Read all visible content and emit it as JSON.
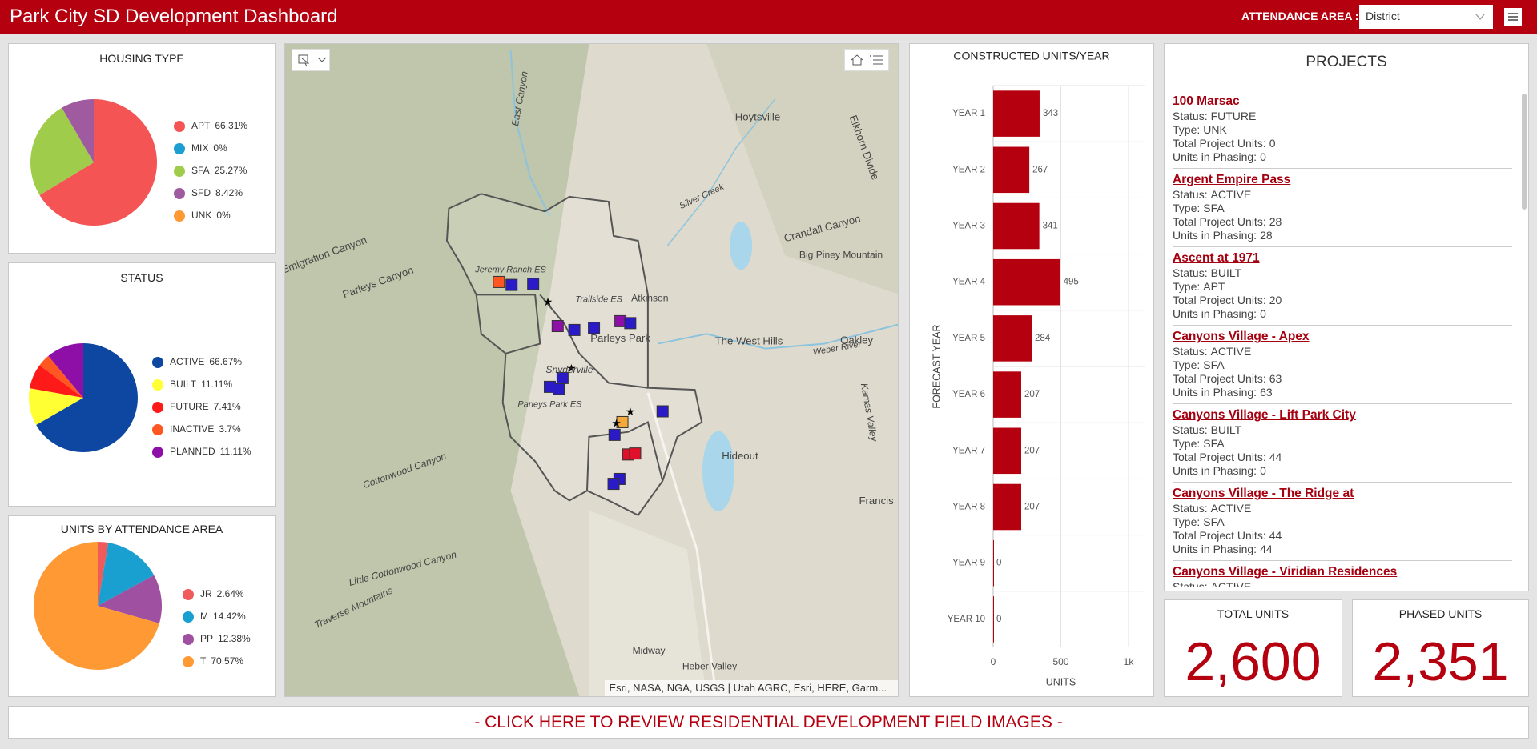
{
  "header": {
    "title": "Park City SD Development Dashboard",
    "filter_label": "ATTENDANCE AREA :",
    "filter_value": "District"
  },
  "chart_data": [
    {
      "type": "pie",
      "title": "HOUSING TYPE",
      "categories": [
        "APT",
        "MIX",
        "SFA",
        "SFD",
        "UNK"
      ],
      "values": [
        66.31,
        0,
        25.27,
        8.42,
        0
      ],
      "value_labels": [
        "66.31%",
        "0%",
        "25.27%",
        "8.42%",
        "0%"
      ],
      "colors": [
        "#f55454",
        "#1a9fd0",
        "#9fcc4a",
        "#a05aa0",
        "#ff9933"
      ]
    },
    {
      "type": "pie",
      "title": "STATUS",
      "categories": [
        "ACTIVE",
        "BUILT",
        "FUTURE",
        "INACTIVE",
        "PLANNED"
      ],
      "values": [
        66.67,
        11.11,
        7.41,
        3.7,
        11.11
      ],
      "value_labels": [
        "66.67%",
        "11.11%",
        "7.41%",
        "3.7%",
        "11.11%"
      ],
      "colors": [
        "#0d47a1",
        "#ffff33",
        "#ff1a1a",
        "#ff5722",
        "#8e0fa8"
      ]
    },
    {
      "type": "pie",
      "title": "UNITS BY ATTENDANCE AREA",
      "categories": [
        "JR",
        "M",
        "PP",
        "T"
      ],
      "values": [
        2.64,
        14.42,
        12.38,
        70.57
      ],
      "value_labels": [
        "2.64%",
        "14.42%",
        "12.38%",
        "70.57%"
      ],
      "colors": [
        "#f05a5a",
        "#1aa0d0",
        "#a050a0",
        "#ff9933"
      ]
    },
    {
      "type": "bar",
      "orientation": "horizontal",
      "title": "CONSTRUCTED UNITS/YEAR",
      "categories": [
        "YEAR 1",
        "YEAR 2",
        "YEAR 3",
        "YEAR 4",
        "YEAR 5",
        "YEAR 6",
        "YEAR 7",
        "YEAR 8",
        "YEAR 9",
        "YEAR 10"
      ],
      "values": [
        343,
        267,
        341,
        495,
        284,
        207,
        207,
        207,
        0,
        0
      ],
      "color": "#b5000f",
      "xlim": [
        0,
        1000
      ],
      "xticks": [
        0,
        500,
        {
          "value": 1000,
          "label": "1k"
        }
      ],
      "x_label": "UNITS",
      "y_label": "FORECAST YEAR",
      "grid": true
    }
  ],
  "map": {
    "labels": [
      "Hoytsville",
      "Atkinson",
      "Parleys Park",
      "The West Hills",
      "Oakley",
      "Hideout",
      "Francis",
      "Midway",
      "Heber Valley",
      "Crandall Canyon",
      "Big Piney Mountain",
      "Parleys Canyon",
      "Emigration Canyon",
      "Cottonwood Canyon",
      "Little Cottonwood Canyon",
      "Traverse Mountains",
      "Snyderville",
      "Jeremy Ranch ES",
      "Trailside ES",
      "Parleys Park ES",
      "East Canyon",
      "Silver Creek",
      "Weber River",
      "Kamas Valley",
      "Elkhorn Divide"
    ],
    "attribution": "Esri, NASA, NGA, USGS | Utah AGRC, Esri, HERE, Garm..."
  },
  "projects": {
    "title": "PROJECTS",
    "field_labels": {
      "status": "Status:",
      "type": "Type:",
      "total_units": "Total Project Units:",
      "units_in_phasing": "Units in Phasing:"
    },
    "items": [
      {
        "name": "100 Marsac",
        "status": "FUTURE",
        "type": "UNK",
        "total_units": 0,
        "units_in_phasing": 0
      },
      {
        "name": "Argent Empire Pass",
        "status": "ACTIVE",
        "type": "SFA",
        "total_units": 28,
        "units_in_phasing": 28
      },
      {
        "name": "Ascent at 1971",
        "status": "BUILT",
        "type": "APT",
        "total_units": 20,
        "units_in_phasing": 0
      },
      {
        "name": "Canyons Village - Apex",
        "status": "ACTIVE",
        "type": "SFA",
        "total_units": 63,
        "units_in_phasing": 63
      },
      {
        "name": "Canyons Village - Lift Park City",
        "status": "BUILT",
        "type": "SFA",
        "total_units": 44,
        "units_in_phasing": 0
      },
      {
        "name": "Canyons Village - The Ridge at",
        "status": "ACTIVE",
        "type": "SFA",
        "total_units": 44,
        "units_in_phasing": 44
      },
      {
        "name": "Canyons Village - Viridian Residences",
        "status": "ACTIVE"
      }
    ]
  },
  "totals": [
    {
      "title": "TOTAL UNITS",
      "value": "2,600"
    },
    {
      "title": "PHASED UNITS",
      "value": "2,351"
    }
  ],
  "banner": "- CLICK HERE TO REVIEW RESIDENTIAL DEVELOPMENT FIELD IMAGES -"
}
